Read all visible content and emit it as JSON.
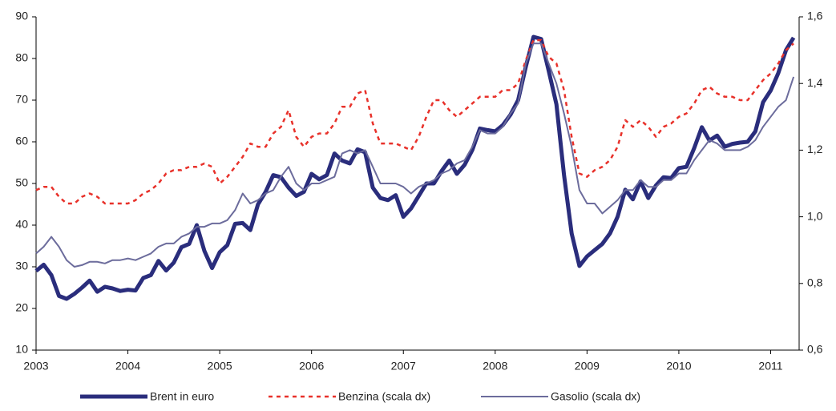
{
  "chart_data": {
    "type": "line",
    "x": [
      2003,
      2003.083,
      2003.167,
      2003.25,
      2003.333,
      2003.417,
      2003.5,
      2003.583,
      2003.667,
      2003.75,
      2003.833,
      2003.917,
      2004,
      2004.083,
      2004.167,
      2004.25,
      2004.333,
      2004.417,
      2004.5,
      2004.583,
      2004.667,
      2004.75,
      2004.833,
      2004.917,
      2005,
      2005.083,
      2005.167,
      2005.25,
      2005.333,
      2005.417,
      2005.5,
      2005.583,
      2005.667,
      2005.75,
      2005.833,
      2005.917,
      2006,
      2006.083,
      2006.167,
      2006.25,
      2006.333,
      2006.417,
      2006.5,
      2006.583,
      2006.667,
      2006.75,
      2006.833,
      2006.917,
      2007,
      2007.083,
      2007.167,
      2007.25,
      2007.333,
      2007.417,
      2007.5,
      2007.583,
      2007.667,
      2007.75,
      2007.833,
      2007.917,
      2008,
      2008.083,
      2008.167,
      2008.25,
      2008.333,
      2008.417,
      2008.5,
      2008.583,
      2008.667,
      2008.75,
      2008.833,
      2008.917,
      2009,
      2009.083,
      2009.167,
      2009.25,
      2009.333,
      2009.417,
      2009.5,
      2009.583,
      2009.667,
      2009.75,
      2009.833,
      2009.917,
      2010,
      2010.083,
      2010.167,
      2010.25,
      2010.333,
      2010.417,
      2010.5,
      2010.583,
      2010.667,
      2010.75,
      2010.833,
      2010.917,
      2011,
      2011.083,
      2011.167,
      2011.25
    ],
    "series": [
      {
        "name": "Brent in euro",
        "color": "#2a2d7c",
        "values": [
          29,
          30.5,
          28,
          23,
          22.3,
          23.5,
          25,
          26.7,
          24,
          25.2,
          24.8,
          24.2,
          24.5,
          24.3,
          27.3,
          28,
          31.4,
          29.1,
          31,
          34.7,
          35.5,
          40,
          33.8,
          29.7,
          33.5,
          35.2,
          40.3,
          40.5,
          38.8,
          45,
          48,
          52,
          51.5,
          49,
          47,
          48,
          52.3,
          51,
          52,
          57.2,
          55.5,
          54.8,
          58.2,
          57.5,
          49,
          46.5,
          46,
          47.2,
          42,
          44,
          47,
          50,
          50,
          53,
          55.5,
          52.3,
          54.5,
          58,
          63.2,
          62.8,
          62.5,
          64,
          66.5,
          70,
          78,
          85.2,
          84.7,
          77,
          69,
          52,
          38,
          30.2,
          32.5,
          34,
          35.5,
          38,
          42,
          48.5,
          46.2,
          50.5,
          46.5,
          49.5,
          51.5,
          51.3,
          53.7,
          54,
          58.5,
          63.5,
          60.3,
          61.5,
          58.8,
          59.5,
          59.8,
          60,
          62.5,
          69.5,
          72.3,
          76.5,
          82,
          85
        ]
      },
      {
        "name": "Benzina (scala dx)",
        "color": "#e8312a",
        "axis": "y2",
        "values": [
          1.08,
          1.09,
          1.09,
          1.06,
          1.04,
          1.04,
          1.06,
          1.07,
          1.06,
          1.04,
          1.04,
          1.04,
          1.04,
          1.05,
          1.07,
          1.08,
          1.1,
          1.13,
          1.14,
          1.14,
          1.15,
          1.15,
          1.16,
          1.15,
          1.1,
          1.12,
          1.15,
          1.18,
          1.22,
          1.21,
          1.21,
          1.25,
          1.27,
          1.32,
          1.24,
          1.21,
          1.24,
          1.25,
          1.25,
          1.28,
          1.33,
          1.33,
          1.37,
          1.38,
          1.28,
          1.22,
          1.22,
          1.22,
          1.21,
          1.2,
          1.24,
          1.3,
          1.35,
          1.35,
          1.32,
          1.3,
          1.32,
          1.34,
          1.36,
          1.36,
          1.36,
          1.38,
          1.38,
          1.4,
          1.47,
          1.53,
          1.53,
          1.48,
          1.46,
          1.38,
          1.24,
          1.13,
          1.12,
          1.14,
          1.15,
          1.17,
          1.21,
          1.29,
          1.27,
          1.29,
          1.27,
          1.24,
          1.27,
          1.28,
          1.3,
          1.31,
          1.34,
          1.38,
          1.39,
          1.37,
          1.36,
          1.36,
          1.35,
          1.35,
          1.38,
          1.41,
          1.43,
          1.46,
          1.5,
          1.52
        ]
      },
      {
        "name": "Gasolio (scala dx)",
        "color": "#6c6c9c",
        "axis": "y2",
        "values": [
          0.89,
          0.91,
          0.94,
          0.91,
          0.87,
          0.85,
          0.855,
          0.865,
          0.865,
          0.86,
          0.87,
          0.87,
          0.875,
          0.87,
          0.88,
          0.89,
          0.91,
          0.92,
          0.92,
          0.94,
          0.95,
          0.97,
          0.97,
          0.98,
          0.98,
          0.99,
          1.02,
          1.07,
          1.04,
          1.05,
          1.07,
          1.08,
          1.12,
          1.15,
          1.1,
          1.08,
          1.1,
          1.1,
          1.11,
          1.12,
          1.19,
          1.2,
          1.19,
          1.2,
          1.15,
          1.1,
          1.1,
          1.1,
          1.09,
          1.07,
          1.09,
          1.1,
          1.11,
          1.13,
          1.14,
          1.16,
          1.17,
          1.21,
          1.26,
          1.25,
          1.25,
          1.27,
          1.31,
          1.34,
          1.46,
          1.52,
          1.52,
          1.46,
          1.4,
          1.31,
          1.21,
          1.08,
          1.04,
          1.04,
          1.01,
          1.03,
          1.05,
          1.08,
          1.08,
          1.11,
          1.09,
          1.09,
          1.11,
          1.11,
          1.13,
          1.13,
          1.17,
          1.2,
          1.23,
          1.22,
          1.2,
          1.2,
          1.2,
          1.21,
          1.23,
          1.27,
          1.3,
          1.33,
          1.35,
          1.42
        ]
      }
    ],
    "xlim": [
      2003,
      2011.31
    ],
    "xticks": [
      2003,
      2004,
      2005,
      2006,
      2007,
      2008,
      2009,
      2010,
      2011
    ],
    "ylim": [
      10,
      90
    ],
    "yticks": [
      10,
      20,
      30,
      40,
      50,
      60,
      70,
      80,
      90
    ],
    "y2lim": [
      0.6,
      1.6
    ],
    "y2ticks": [
      {
        "value": 0.6,
        "label": "0,6"
      },
      {
        "value": 0.8,
        "label": "0,8"
      },
      {
        "value": 1.0,
        "label": "1,0"
      },
      {
        "value": 1.2,
        "label": "1,2"
      },
      {
        "value": 1.4,
        "label": "1,4"
      },
      {
        "value": 1.6,
        "label": "1,6"
      }
    ],
    "grid": false,
    "legend": "bottom"
  }
}
